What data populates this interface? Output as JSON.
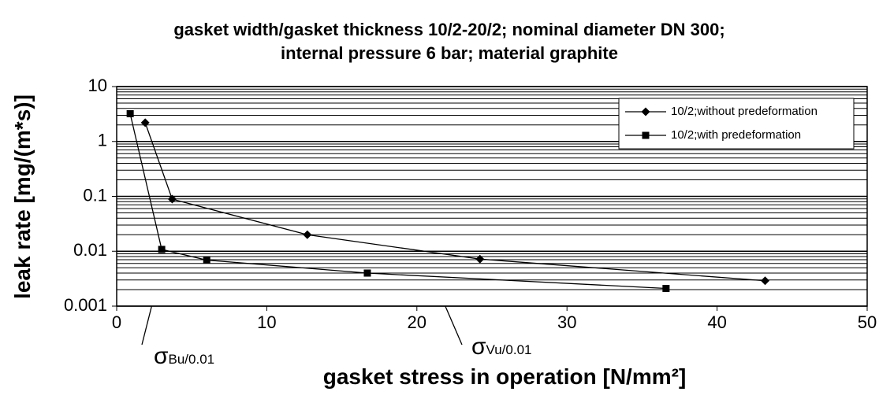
{
  "chart_data": {
    "type": "line",
    "title": [
      "gasket width/gasket thickness 10/2-20/2; nominal diameter DN 300;",
      "internal pressure 6 bar; material graphite"
    ],
    "xlabel": "gasket stress in operation [N/mm²]",
    "ylabel": "leak rate [mg/(m*s)]",
    "xlim": [
      0,
      50
    ],
    "xticks": [
      0,
      10,
      20,
      30,
      40,
      50
    ],
    "ylim": [
      0.001,
      10
    ],
    "yticks": [
      0.001,
      0.01,
      0.1,
      1,
      10
    ],
    "log_y": true,
    "grid": true,
    "legend": "upper right",
    "series": [
      {
        "name": "10/2;without predeformation",
        "color": "#000000",
        "marker": "diamond",
        "x": [
          1.9,
          3.7,
          12.7,
          24.2,
          43.2
        ],
        "values": [
          2.2,
          0.089,
          0.02,
          0.0072,
          0.0029
        ]
      },
      {
        "name": "10/2;with predeformation",
        "color": "#000000",
        "marker": "square",
        "x": [
          0.9,
          3.0,
          6.0,
          16.7,
          36.6
        ],
        "values": [
          3.2,
          0.0108,
          0.0069,
          0.004,
          0.0021
        ]
      }
    ],
    "annotations": [
      {
        "symbol": "σ",
        "subscript": "Bu/0.01"
      },
      {
        "symbol": "σ",
        "subscript": "Vu/0.01"
      }
    ]
  }
}
